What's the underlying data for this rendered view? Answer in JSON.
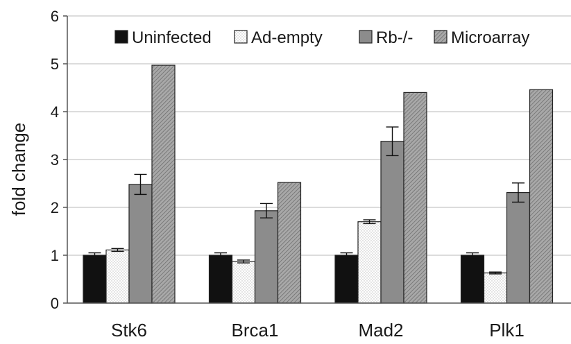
{
  "chart_data": {
    "type": "bar",
    "title": "",
    "xlabel": "",
    "ylabel": "fold change",
    "ylim": [
      0,
      6
    ],
    "yticks": [
      0,
      1,
      2,
      3,
      4,
      5,
      6
    ],
    "grid": "horizontal",
    "legend_position": "top-right",
    "categories": [
      "Stk6",
      "Brca1",
      "Mad2",
      "Plk1"
    ],
    "series": [
      {
        "name": "Uninfected",
        "values": [
          1.0,
          1.0,
          1.0,
          1.0
        ],
        "errors": [
          0.05,
          0.05,
          0.05,
          0.05
        ],
        "color": "#111111",
        "pattern": "solid"
      },
      {
        "name": "Ad-empty",
        "values": [
          1.11,
          0.87,
          1.7,
          0.63
        ],
        "errors": [
          0.03,
          0.03,
          0.04,
          0.02
        ],
        "color": "#ffffff",
        "pattern": "dots"
      },
      {
        "name": "Rb-/-",
        "values": [
          2.48,
          1.93,
          3.38,
          2.31
        ],
        "errors": [
          0.21,
          0.15,
          0.3,
          0.2
        ],
        "color": "#8c8c8c",
        "pattern": "solid"
      },
      {
        "name": "Microarray",
        "values": [
          4.97,
          2.52,
          4.4,
          4.46
        ],
        "errors": [
          null,
          null,
          null,
          null
        ],
        "color": "#9a9a9a",
        "pattern": "hatch"
      }
    ]
  }
}
